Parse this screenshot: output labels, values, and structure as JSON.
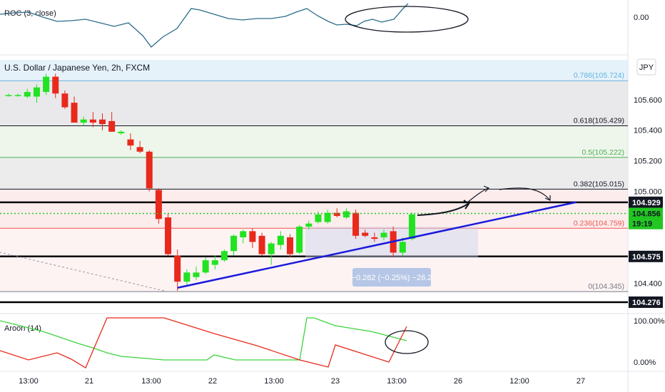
{
  "chart_data": {
    "type": "candlestick",
    "title": "U.S. Dollar / Japanese Yen, 2h, FXCM",
    "currency_button": "JPY",
    "x_ticks": [
      "13:00",
      "21",
      "13:00",
      "22",
      "13:00",
      "23",
      "13:00",
      "26",
      "12:00",
      "27"
    ],
    "y_ticks": [
      "105.600",
      "105.400",
      "105.200",
      "105.000",
      "104.400"
    ],
    "y_range": [
      104.22,
      105.86
    ],
    "y_ticks_values": [
      105.6,
      105.4,
      105.2,
      105.0,
      104.4
    ],
    "candles": [
      {
        "o": 105.63,
        "h": 105.64,
        "l": 105.62,
        "c": 105.63
      },
      {
        "o": 105.63,
        "h": 105.64,
        "l": 105.62,
        "c": 105.63
      },
      {
        "o": 105.62,
        "h": 105.67,
        "l": 105.61,
        "c": 105.65
      },
      {
        "o": 105.62,
        "h": 105.7,
        "l": 105.58,
        "c": 105.68
      },
      {
        "o": 105.65,
        "h": 105.77,
        "l": 105.63,
        "c": 105.75
      },
      {
        "o": 105.75,
        "h": 105.77,
        "l": 105.61,
        "c": 105.64
      },
      {
        "o": 105.64,
        "h": 105.66,
        "l": 105.54,
        "c": 105.55
      },
      {
        "o": 105.58,
        "h": 105.62,
        "l": 105.45,
        "c": 105.45
      },
      {
        "o": 105.45,
        "h": 105.49,
        "l": 105.43,
        "c": 105.47
      },
      {
        "o": 105.47,
        "h": 105.52,
        "l": 105.42,
        "c": 105.45
      },
      {
        "o": 105.47,
        "h": 105.51,
        "l": 105.4,
        "c": 105.44
      },
      {
        "o": 105.46,
        "h": 105.52,
        "l": 105.39,
        "c": 105.39
      },
      {
        "o": 105.38,
        "h": 105.4,
        "l": 105.37,
        "c": 105.39
      },
      {
        "o": 105.34,
        "h": 105.38,
        "l": 105.27,
        "c": 105.3
      },
      {
        "o": 105.29,
        "h": 105.33,
        "l": 105.25,
        "c": 105.26
      },
      {
        "o": 105.26,
        "h": 105.27,
        "l": 105.0,
        "c": 105.02
      },
      {
        "o": 105.01,
        "h": 105.02,
        "l": 104.79,
        "c": 104.82
      },
      {
        "o": 104.83,
        "h": 104.86,
        "l": 104.58,
        "c": 104.59
      },
      {
        "o": 104.58,
        "h": 104.62,
        "l": 104.35,
        "c": 104.41
      },
      {
        "o": 104.41,
        "h": 104.49,
        "l": 104.38,
        "c": 104.47
      },
      {
        "o": 104.44,
        "h": 104.51,
        "l": 104.42,
        "c": 104.47
      },
      {
        "o": 104.47,
        "h": 104.57,
        "l": 104.46,
        "c": 104.55
      },
      {
        "o": 104.52,
        "h": 104.58,
        "l": 104.49,
        "c": 104.55
      },
      {
        "o": 104.55,
        "h": 104.62,
        "l": 104.54,
        "c": 104.61
      },
      {
        "o": 104.61,
        "h": 104.72,
        "l": 104.58,
        "c": 104.71
      },
      {
        "o": 104.7,
        "h": 104.75,
        "l": 104.66,
        "c": 104.74
      },
      {
        "o": 104.74,
        "h": 104.76,
        "l": 104.63,
        "c": 104.67
      },
      {
        "o": 104.71,
        "h": 104.73,
        "l": 104.58,
        "c": 104.59
      },
      {
        "o": 104.59,
        "h": 104.67,
        "l": 104.52,
        "c": 104.66
      },
      {
        "o": 104.65,
        "h": 104.74,
        "l": 104.62,
        "c": 104.71
      },
      {
        "o": 104.7,
        "h": 104.72,
        "l": 104.57,
        "c": 104.59
      },
      {
        "o": 104.6,
        "h": 104.78,
        "l": 104.59,
        "c": 104.77
      },
      {
        "o": 104.77,
        "h": 104.81,
        "l": 104.75,
        "c": 104.79
      },
      {
        "o": 104.8,
        "h": 104.87,
        "l": 104.79,
        "c": 104.85
      },
      {
        "o": 104.8,
        "h": 104.88,
        "l": 104.79,
        "c": 104.86
      },
      {
        "o": 104.86,
        "h": 104.89,
        "l": 104.83,
        "c": 104.84
      },
      {
        "o": 104.83,
        "h": 104.89,
        "l": 104.82,
        "c": 104.87
      },
      {
        "o": 104.86,
        "h": 104.88,
        "l": 104.69,
        "c": 104.71
      },
      {
        "o": 104.73,
        "h": 104.75,
        "l": 104.7,
        "c": 104.71
      },
      {
        "o": 104.7,
        "h": 104.73,
        "l": 104.67,
        "c": 104.69
      },
      {
        "o": 104.7,
        "h": 104.75,
        "l": 104.68,
        "c": 104.73
      },
      {
        "o": 104.74,
        "h": 104.77,
        "l": 104.57,
        "c": 104.6
      },
      {
        "o": 104.6,
        "h": 104.7,
        "l": 104.58,
        "c": 104.67
      },
      {
        "o": 104.69,
        "h": 104.86,
        "l": 104.68,
        "c": 104.85
      }
    ],
    "fib_levels": [
      {
        "ratio": 0.786,
        "label": "0.786(105.724)",
        "price": 105.724,
        "line": "#5fb4e0",
        "band": "#e6f2fa"
      },
      {
        "ratio": 0.618,
        "label": "0.618(105.429)",
        "price": 105.429,
        "line": "#131722",
        "band": "#e9e9eb"
      },
      {
        "ratio": 0.5,
        "label": "0.5(105.222)",
        "price": 105.222,
        "line": "#4caf50",
        "band": "#eef6ec"
      },
      {
        "ratio": 0.382,
        "label": "0.382(105.015)",
        "price": 105.015,
        "line": "#131722",
        "band": "#ececed"
      },
      {
        "ratio": 0.236,
        "label": "0.236(104.759)",
        "price": 104.759,
        "line": "#ef5350",
        "band": "#fcecec"
      },
      {
        "ratio": 0,
        "label": "0(104.345)",
        "price": 104.345,
        "line": "#787b86",
        "band": "#fdf3f3"
      }
    ],
    "horizontal_lines": [
      104.929,
      104.575,
      104.276
    ],
    "price_badges": [
      {
        "text": "104.929",
        "bg": "#131722",
        "fg": "#ffffff",
        "price": 104.929
      },
      {
        "text": "104.856",
        "bg": "#22c722",
        "fg": "#131722",
        "price": 104.856
      },
      {
        "text": "19:19",
        "bg": "#22c722",
        "fg": "#131722",
        "price": 104.79
      },
      {
        "text": "104.575",
        "bg": "#131722",
        "fg": "#ffffff",
        "price": 104.575
      },
      {
        "text": "104.276",
        "bg": "#131722",
        "fg": "#ffffff",
        "price": 104.276
      }
    ],
    "last_price": 104.856,
    "trendline": {
      "from": {
        "candle": 18,
        "price": 104.37
      },
      "to": {
        "candle": 52,
        "price": 104.93
      },
      "color": "#1a1adc"
    },
    "measure_label": "−0.262 (−0.25%) −26.2",
    "roc": {
      "label": "ROC (3, close)",
      "value_label": "0.00"
    },
    "aroon": {
      "label": "Aroon (14)",
      "ticks": [
        "100.00%",
        "0.00%"
      ]
    },
    "colors": {
      "up": "#22e322",
      "down": "#e8291c",
      "roc_line": "#2b6c8c",
      "aroon_up": "#3cd33c",
      "aroon_down": "#e8291c"
    }
  }
}
